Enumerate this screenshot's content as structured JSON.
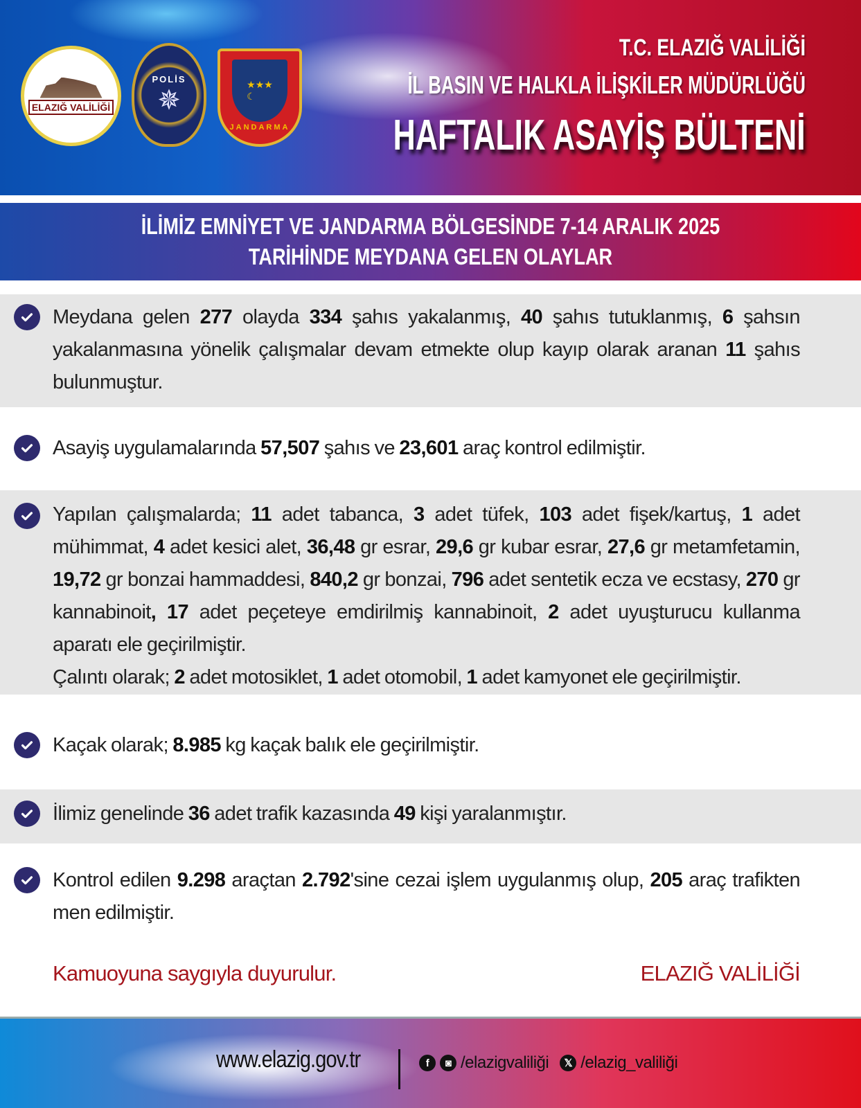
{
  "header": {
    "logos": {
      "valilik": "T.C. ELAZIĞ VALİLİĞİ",
      "polis": "POLİS EMNİYET GENEL MÜDÜRLÜĞÜ 1845",
      "jandarma": "JANDARMA 1839"
    },
    "line1": "T.C. ELAZIĞ VALİLİĞİ",
    "line2": "İL BASIN VE HALKLA İLİŞKİLER MÜDÜRLÜĞÜ",
    "title": "HAFTALIK ASAYİŞ BÜLTENİ"
  },
  "banner": {
    "line1": "İLİMİZ EMNİYET VE JANDARMA BÖLGESİNDE 7-14 ARALIK 2025",
    "line2": "TARİHİNDE MEYDANA GELEN OLAYLAR"
  },
  "items": [
    [
      {
        "t": "Meydana gelen "
      },
      {
        "t": "277",
        "b": 1
      },
      {
        "t": " olayda "
      },
      {
        "t": "334",
        "b": 1
      },
      {
        "t": " şahıs yakalanmış, "
      },
      {
        "t": "40",
        "b": 1
      },
      {
        "t": " şahıs tutuklanmış, "
      },
      {
        "t": "6",
        "b": 1
      },
      {
        "t": " şahsın yakalanmasına yönelik çalışmalar devam etmekte olup kayıp olarak aranan "
      },
      {
        "t": "11",
        "b": 1
      },
      {
        "t": " şahıs bulunmuştur."
      }
    ],
    [
      {
        "t": "Asayiş uygulamalarında "
      },
      {
        "t": "57,507",
        "b": 1
      },
      {
        "t": " şahıs ve "
      },
      {
        "t": "23,601",
        "b": 1
      },
      {
        "t": " araç kontrol edilmiştir."
      }
    ],
    [
      {
        "t": "Yapılan çalışmalarda; "
      },
      {
        "t": "11",
        "b": 1
      },
      {
        "t": " adet tabanca, "
      },
      {
        "t": "3",
        "b": 1
      },
      {
        "t": " adet tüfek, "
      },
      {
        "t": "103",
        "b": 1
      },
      {
        "t": " adet fişek/kartuş, "
      },
      {
        "t": "1",
        "b": 1
      },
      {
        "t": " adet mühimmat, "
      },
      {
        "t": "4",
        "b": 1
      },
      {
        "t": " adet kesici alet, "
      },
      {
        "t": "36,48",
        "b": 1
      },
      {
        "t": " gr esrar, "
      },
      {
        "t": "29,6",
        "b": 1
      },
      {
        "t": " gr kubar esrar, "
      },
      {
        "t": "27,6",
        "b": 1
      },
      {
        "t": " gr metamfetamin, "
      },
      {
        "t": "19,72",
        "b": 1
      },
      {
        "t": " gr bonzai hammaddesi, "
      },
      {
        "t": "840,2",
        "b": 1
      },
      {
        "t": " gr bonzai, "
      },
      {
        "t": "796",
        "b": 1
      },
      {
        "t": " adet sentetik ecza ve ecstasy, "
      },
      {
        "t": "270",
        "b": 1
      },
      {
        "t": " gr kannabinoit"
      },
      {
        "t": ", 17",
        "b": 1
      },
      {
        "t": " adet peçeteye emdirilmiş kannabinoit, "
      },
      {
        "t": "2",
        "b": 1
      },
      {
        "t": " adet uyuşturucu kullanma aparatı ele geçirilmiştir."
      },
      {
        "br": 1
      },
      {
        "t": "Çalıntı olarak; "
      },
      {
        "t": "2",
        "b": 1
      },
      {
        "t": " adet motosiklet, "
      },
      {
        "t": "1",
        "b": 1
      },
      {
        "t": " adet otomobil, "
      },
      {
        "t": "1",
        "b": 1
      },
      {
        "t": " adet kamyonet ele geçirilmiştir."
      }
    ],
    [
      {
        "t": "Kaçak olarak; "
      },
      {
        "t": "8.985",
        "b": 1
      },
      {
        "t": " kg kaçak balık ele geçirilmiştir."
      }
    ],
    [
      {
        "t": "İlimiz genelinde "
      },
      {
        "t": "36",
        "b": 1
      },
      {
        "t": " adet trafik kazasında "
      },
      {
        "t": "49",
        "b": 1
      },
      {
        "t": " kişi yaralanmıştır."
      }
    ],
    [
      {
        "t": "Kontrol edilen "
      },
      {
        "t": "9.298",
        "b": 1
      },
      {
        "t": " araçtan "
      },
      {
        "t": "2.792",
        "b": 1
      },
      {
        "t": "'sine cezai işlem uygulanmış olup, "
      },
      {
        "t": "205",
        "b": 1
      },
      {
        "t": " araç trafikten men edilmiştir."
      }
    ]
  ],
  "signoff": {
    "left": "Kamuoyuna saygıyla duyurulur.",
    "right": "ELAZIĞ VALİLİĞİ"
  },
  "footer": {
    "website": "www.elazig.gov.tr",
    "fb_ig": "/elazigvaliliği",
    "x": "/elazig_valiliği",
    "icons": [
      "facebook-icon",
      "instagram-icon",
      "x-icon"
    ]
  },
  "colors": {
    "accent_red": "#a5151c",
    "check_bg": "#2e2a6e",
    "row_grey": "#e6e6e6"
  }
}
